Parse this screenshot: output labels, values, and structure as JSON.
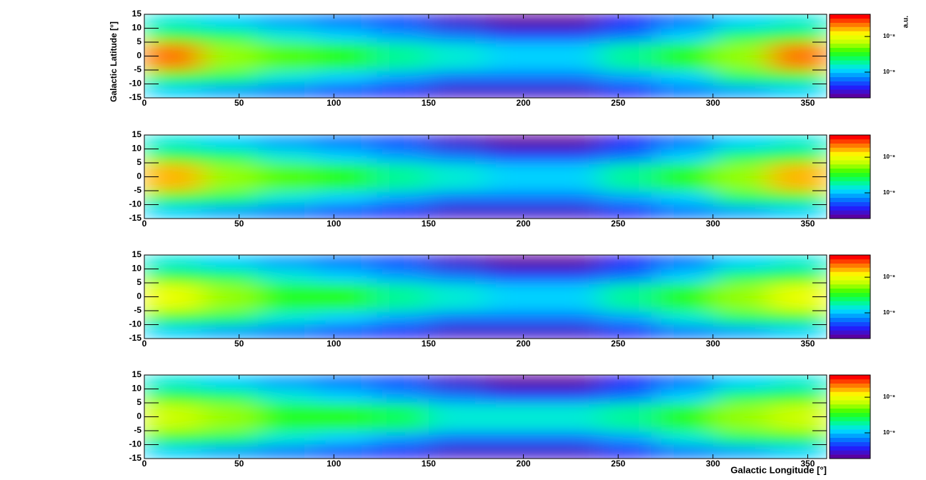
{
  "colorscale": [
    "#5a00a0",
    "#2020ff",
    "#0080ff",
    "#00e0ff",
    "#00ff80",
    "#30ff00",
    "#c0ff00",
    "#ffff00",
    "#ff8000",
    "#ff0000"
  ],
  "chart_data": [
    {
      "type": "heatmap",
      "ylabel": "Galactic Latitude [°]",
      "zlabel": "a.u.",
      "log_z": true,
      "xbins": [
        0,
        30,
        60,
        90,
        120,
        150,
        180,
        210,
        240,
        270,
        300,
        330,
        360
      ],
      "ybins": [
        -15,
        -10,
        -5,
        0,
        5,
        10,
        15
      ],
      "values": [
        [
          1.2e-09,
          9e-10,
          6e-10,
          5e-10,
          4e-10,
          3e-10,
          3e-10,
          3e-10,
          4e-10,
          6e-10,
          9e-10,
          1.2e-09
        ],
        [
          3e-09,
          2.5e-09,
          1.5e-09,
          1e-09,
          8e-10,
          6e-10,
          6e-10,
          6e-10,
          8e-10,
          1.2e-09,
          2.5e-09,
          3e-09
        ],
        [
          2e-08,
          6e-09,
          4e-09,
          3e-09,
          2e-09,
          1.5e-09,
          1.2e-09,
          1.2e-09,
          1.8e-09,
          3e-09,
          6e-09,
          2e-08
        ],
        [
          2e-08,
          6e-09,
          4e-09,
          3e-09,
          2e-09,
          1.5e-09,
          1.2e-09,
          1.2e-09,
          1.8e-09,
          3e-09,
          6e-09,
          2e-08
        ],
        [
          3e-09,
          2.5e-09,
          1.5e-09,
          1e-09,
          8e-10,
          6e-10,
          5e-10,
          5e-10,
          7e-10,
          1.2e-09,
          2.5e-09,
          3e-09
        ],
        [
          1.5e-09,
          1.2e-09,
          8e-10,
          6e-10,
          5e-10,
          3e-10,
          2e-10,
          2e-10,
          4e-10,
          7e-10,
          1.2e-09,
          1.5e-09
        ]
      ],
      "xlim": [
        0,
        360
      ],
      "ylim": [
        -15,
        15
      ],
      "zlim": [
        1.9e-10,
        4.2e-08
      ],
      "xticks": [
        0,
        50,
        100,
        150,
        200,
        250,
        300,
        350
      ],
      "yticks": [
        -15,
        -10,
        -5,
        0,
        5,
        10,
        15
      ],
      "zticks": [
        {
          "value": 1e-09,
          "label": "10⁻⁹"
        },
        {
          "value": 1e-08,
          "label": "10⁻⁸"
        }
      ]
    },
    {
      "type": "heatmap",
      "log_z": true,
      "xbins": [
        0,
        30,
        60,
        90,
        120,
        150,
        180,
        210,
        240,
        270,
        300,
        330,
        360
      ],
      "ybins": [
        -15,
        -10,
        -5,
        0,
        5,
        10,
        15
      ],
      "values": [
        [
          1.2e-09,
          9e-10,
          6e-10,
          5e-10,
          4e-10,
          3e-10,
          3e-10,
          3e-10,
          4e-10,
          6e-10,
          9e-10,
          1.2e-09
        ],
        [
          3e-09,
          2.5e-09,
          1.5e-09,
          1e-09,
          8e-10,
          6e-10,
          6e-10,
          6e-10,
          8e-10,
          1.2e-09,
          2.5e-09,
          3e-09
        ],
        [
          1.5e-08,
          6e-09,
          4e-09,
          3e-09,
          2e-09,
          1.5e-09,
          1.2e-09,
          1.2e-09,
          1.8e-09,
          3e-09,
          6e-09,
          1.5e-08
        ],
        [
          1.5e-08,
          6e-09,
          4e-09,
          3e-09,
          2e-09,
          1.5e-09,
          1.2e-09,
          1.2e-09,
          1.8e-09,
          3e-09,
          6e-09,
          1.5e-08
        ],
        [
          3e-09,
          2.5e-09,
          1.5e-09,
          1e-09,
          8e-10,
          6e-10,
          5e-10,
          5e-10,
          7e-10,
          1.2e-09,
          2.5e-09,
          3e-09
        ],
        [
          1.5e-09,
          1.2e-09,
          8e-10,
          6e-10,
          5e-10,
          3e-10,
          2e-10,
          2e-10,
          4e-10,
          7e-10,
          1.2e-09,
          1.5e-09
        ]
      ],
      "xlim": [
        0,
        360
      ],
      "ylim": [
        -15,
        15
      ],
      "zlim": [
        1.9e-10,
        4.2e-08
      ],
      "xticks": [
        0,
        50,
        100,
        150,
        200,
        250,
        300,
        350
      ],
      "yticks": [
        -15,
        -10,
        -5,
        0,
        5,
        10,
        15
      ],
      "zticks": [
        {
          "value": 1e-09,
          "label": "10⁻⁹"
        },
        {
          "value": 1e-08,
          "label": "10⁻⁸"
        }
      ]
    },
    {
      "type": "heatmap",
      "log_z": true,
      "xbins": [
        0,
        30,
        60,
        90,
        120,
        150,
        180,
        210,
        240,
        270,
        300,
        330,
        360
      ],
      "ybins": [
        -15,
        -10,
        -5,
        0,
        5,
        10,
        15
      ],
      "values": [
        [
          1.2e-09,
          9e-10,
          6e-10,
          5e-10,
          4e-10,
          3e-10,
          3e-10,
          3e-10,
          4e-10,
          6e-10,
          9e-10,
          1.2e-09
        ],
        [
          3e-09,
          2.5e-09,
          1.5e-09,
          1.2e-09,
          9e-10,
          7e-10,
          6e-10,
          6e-10,
          8e-10,
          1.3e-09,
          2.5e-09,
          3e-09
        ],
        [
          9e-09,
          5e-09,
          3.5e-09,
          3e-09,
          2e-09,
          1.5e-09,
          1.2e-09,
          1.2e-09,
          1.8e-09,
          3e-09,
          5e-09,
          9e-09
        ],
        [
          9e-09,
          5e-09,
          3.5e-09,
          3e-09,
          2e-09,
          1.5e-09,
          1.2e-09,
          1.2e-09,
          1.8e-09,
          3e-09,
          5e-09,
          9e-09
        ],
        [
          3e-09,
          2.5e-09,
          1.5e-09,
          1.1e-09,
          8e-10,
          6e-10,
          5e-10,
          5e-10,
          7e-10,
          1.2e-09,
          2.5e-09,
          3e-09
        ],
        [
          1.5e-09,
          1.2e-09,
          8e-10,
          6e-10,
          5e-10,
          3e-10,
          2e-10,
          2e-10,
          4e-10,
          7e-10,
          1.2e-09,
          1.5e-09
        ]
      ],
      "xlim": [
        0,
        360
      ],
      "ylim": [
        -15,
        15
      ],
      "zlim": [
        1.9e-10,
        4.2e-08
      ],
      "xticks": [
        0,
        50,
        100,
        150,
        200,
        250,
        300,
        350
      ],
      "yticks": [
        -15,
        -10,
        -5,
        0,
        5,
        10,
        15
      ],
      "zticks": [
        {
          "value": 1e-09,
          "label": "10⁻⁹"
        },
        {
          "value": 1e-08,
          "label": "10⁻⁸"
        }
      ]
    },
    {
      "type": "heatmap",
      "xlabel": "Galactic Longitude [°]",
      "log_z": true,
      "xbins": [
        0,
        30,
        60,
        90,
        120,
        150,
        180,
        210,
        240,
        270,
        300,
        330,
        360
      ],
      "ybins": [
        -15,
        -10,
        -5,
        0,
        5,
        10,
        15
      ],
      "values": [
        [
          1.2e-09,
          9e-10,
          6e-10,
          5e-10,
          4e-10,
          3e-10,
          3e-10,
          3e-10,
          4e-10,
          6e-10,
          9e-10,
          1.2e-09
        ],
        [
          3e-09,
          2.5e-09,
          1.6e-09,
          1.2e-09,
          9e-10,
          7e-10,
          6e-10,
          6e-10,
          8e-10,
          1.3e-09,
          2.5e-09,
          3e-09
        ],
        [
          7e-09,
          5e-09,
          3.5e-09,
          3e-09,
          2.2e-09,
          1.6e-09,
          1.3e-09,
          1.3e-09,
          1.8e-09,
          3e-09,
          5e-09,
          7e-09
        ],
        [
          7e-09,
          5e-09,
          3.5e-09,
          3e-09,
          2.2e-09,
          1.6e-09,
          1.3e-09,
          1.3e-09,
          1.8e-09,
          3e-09,
          5e-09,
          7e-09
        ],
        [
          3e-09,
          2.5e-09,
          1.6e-09,
          1.2e-09,
          8e-10,
          6e-10,
          5e-10,
          5e-10,
          7e-10,
          1.2e-09,
          2.5e-09,
          3e-09
        ],
        [
          1.5e-09,
          1.2e-09,
          8e-10,
          6e-10,
          5e-10,
          3e-10,
          2e-10,
          2e-10,
          4e-10,
          7e-10,
          1.2e-09,
          1.5e-09
        ]
      ],
      "xlim": [
        0,
        360
      ],
      "ylim": [
        -15,
        15
      ],
      "zlim": [
        1.9e-10,
        4.2e-08
      ],
      "xticks": [
        0,
        50,
        100,
        150,
        200,
        250,
        300,
        350
      ],
      "yticks": [
        -15,
        -10,
        -5,
        0,
        5,
        10,
        15
      ],
      "zticks": [
        {
          "value": 1e-09,
          "label": "10⁻⁹"
        },
        {
          "value": 1e-08,
          "label": "10⁻⁸"
        }
      ]
    }
  ]
}
